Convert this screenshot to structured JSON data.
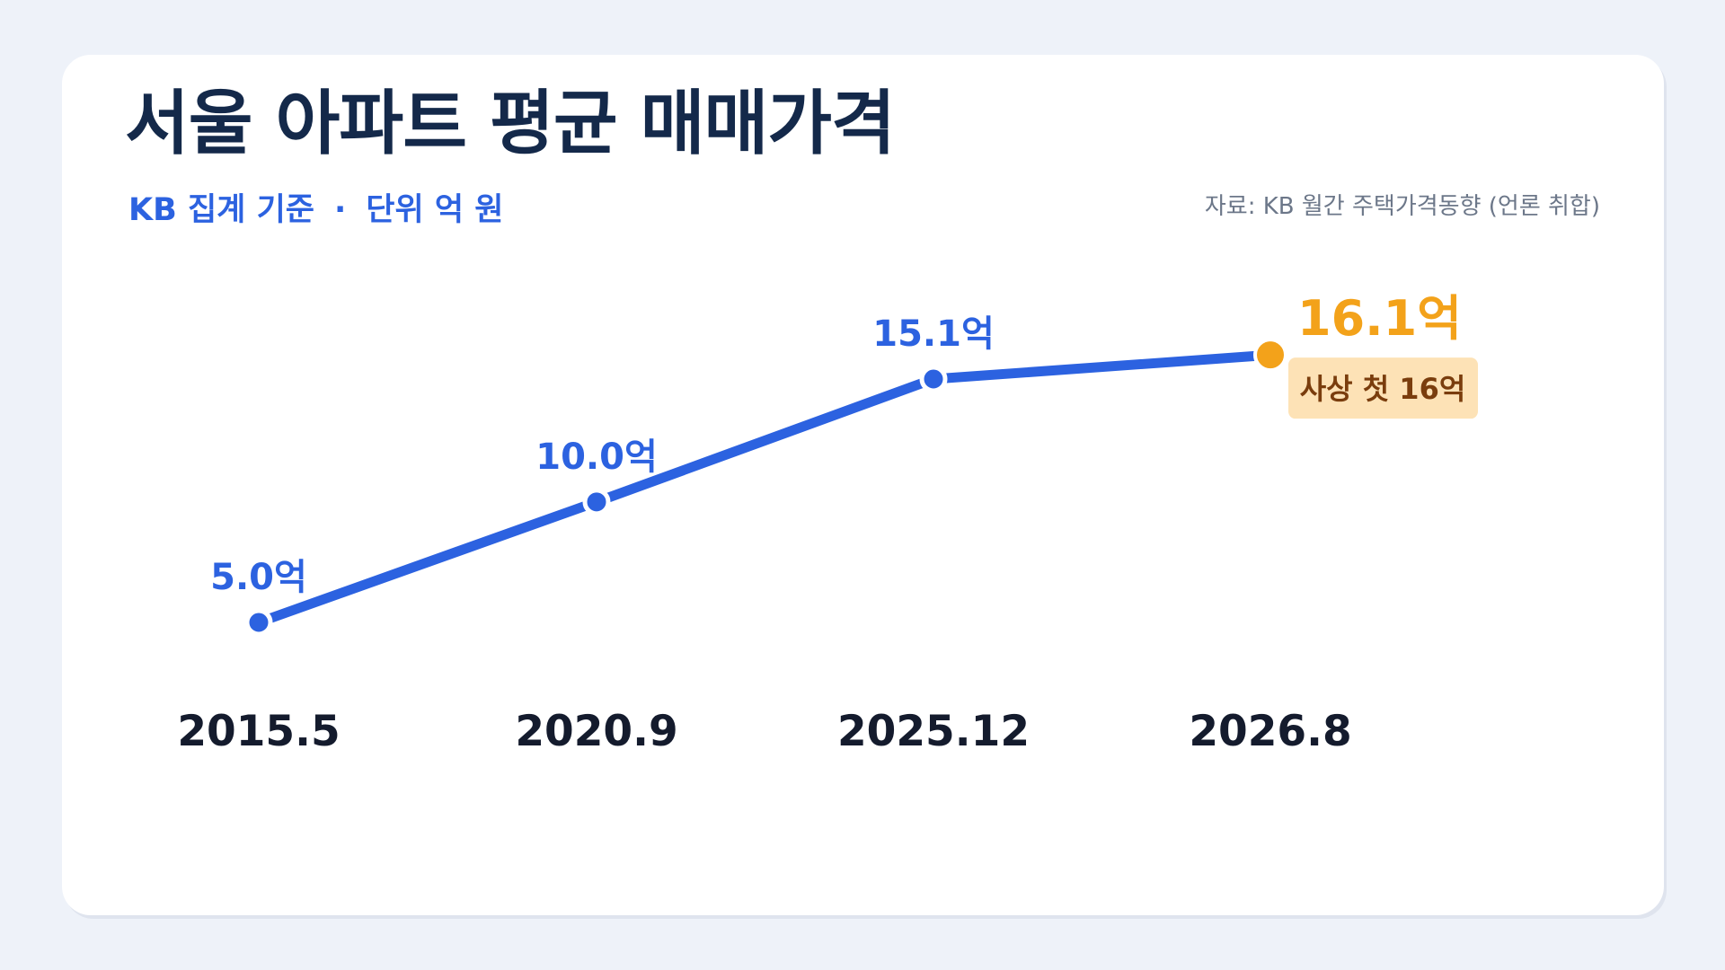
{
  "title": "서울 아파트 평균 매매가격",
  "subtitle": {
    "basis": "KB 집계 기준",
    "separator": "·",
    "unit": "단위 억 원"
  },
  "source": "자료: KB 월간 주택가격동향 (언론 취합)",
  "colors": {
    "line": "#2c62e0",
    "highlight": "#f3a21a",
    "note_bg": "#fde2b6",
    "note_text": "#7a3d0d",
    "title": "#14294a"
  },
  "chart_data": {
    "type": "line",
    "x": [
      "2015.5",
      "2020.9",
      "2025.12",
      "2026.8"
    ],
    "values": [
      5.0,
      10.0,
      15.1,
      16.1
    ],
    "data_labels": [
      "5.0억",
      "10.0억",
      "15.1억",
      "16.1억"
    ],
    "highlight_index": 3,
    "annotation": "사상 첫 16억",
    "ylim": [
      0,
      20
    ],
    "grid": false,
    "legend": "none"
  }
}
